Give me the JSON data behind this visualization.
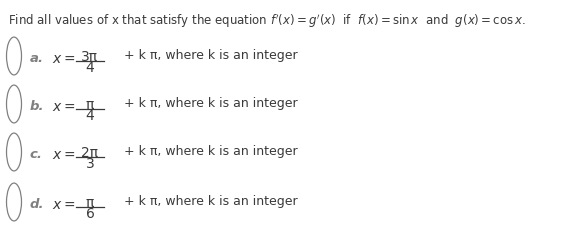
{
  "bg_color": "#ffffff",
  "text_color": "#3a3a3a",
  "gray_color": "#808080",
  "options": [
    {
      "label": "a.",
      "numerator": "3π",
      "denominator": "4",
      "suffix": "+ k π, where k is an integer"
    },
    {
      "label": "b.",
      "numerator": "π",
      "denominator": "4",
      "suffix": "+ k π, where k is an integer"
    },
    {
      "label": "c.",
      "numerator": "2π",
      "denominator": "3",
      "suffix": "+ k π, where k is an integer"
    },
    {
      "label": "d.",
      "numerator": "π",
      "denominator": "6",
      "suffix": "+ k π, where k is an integer"
    }
  ],
  "figsize": [
    5.83,
    2.31
  ],
  "dpi": 100
}
